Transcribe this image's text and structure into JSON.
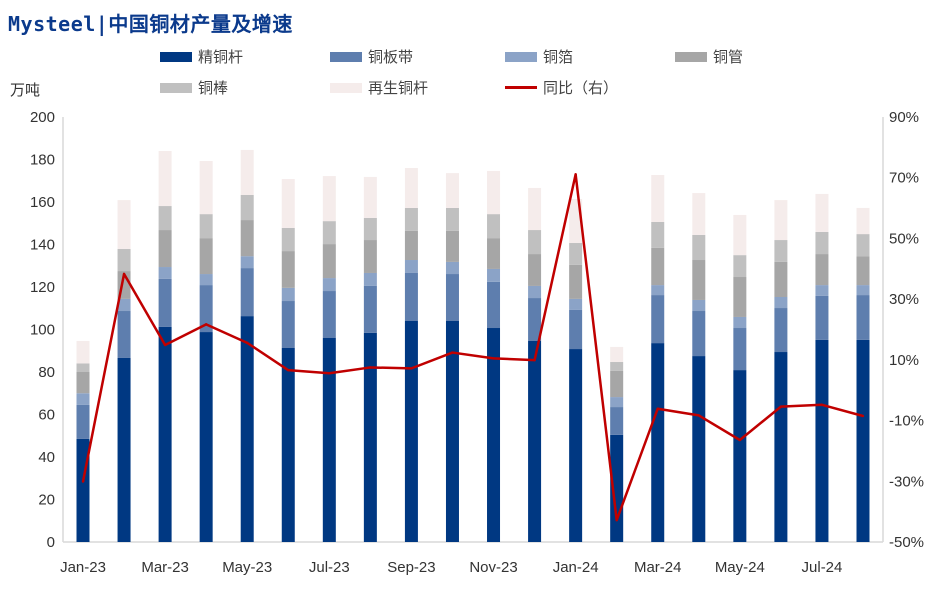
{
  "title": "Mysteel|中国铜材产量及增速",
  "chart_data": {
    "type": "bar",
    "stacked": true,
    "title": "Mysteel|中国铜材产量及增速",
    "ylabel": "万吨",
    "ylim": [
      0,
      200
    ],
    "y_ticks": [
      0,
      20,
      40,
      60,
      80,
      100,
      120,
      140,
      160,
      180,
      200
    ],
    "y2lim": [
      -50,
      90
    ],
    "y2_ticks": [
      "-50%",
      "-30%",
      "-10%",
      "10%",
      "30%",
      "50%",
      "70%",
      "90%"
    ],
    "grid": false,
    "legend_position": "top",
    "categories": [
      "Jan-23",
      "Feb-23",
      "Mar-23",
      "Apr-23",
      "May-23",
      "Jun-23",
      "Jul-23",
      "Aug-23",
      "Sep-23",
      "Oct-23",
      "Nov-23",
      "Dec-23",
      "Jan-24",
      "Feb-24",
      "Mar-24",
      "Apr-24",
      "May-24",
      "Jun-24",
      "Jul-24",
      "Aug-24"
    ],
    "x_tick_labels": [
      "Jan-23",
      "Mar-23",
      "May-23",
      "Jul-23",
      "Sep-23",
      "Nov-23",
      "Jan-24",
      "Mar-24",
      "May-24",
      "Jul-24"
    ],
    "series": [
      {
        "name": "精铜杆",
        "color": "#003882",
        "values": [
          48.5,
          86.6,
          101.2,
          98.8,
          106.3,
          91.3,
          96.0,
          98.4,
          104.0,
          104.0,
          100.7,
          94.6,
          90.8,
          50.4,
          93.6,
          87.5,
          80.9,
          89.4,
          95.1,
          95.1
        ]
      },
      {
        "name": "铜板带",
        "color": "#5e7eae",
        "values": [
          16.0,
          22.1,
          22.6,
          22.1,
          22.6,
          22.1,
          22.1,
          22.1,
          22.6,
          22.1,
          21.7,
          20.2,
          18.4,
          13.1,
          22.6,
          21.2,
          19.8,
          20.7,
          20.7,
          21.1
        ]
      },
      {
        "name": "铜箔",
        "color": "#8ba3c7",
        "values": [
          5.5,
          5.7,
          5.6,
          5.2,
          5.6,
          6.2,
          6.1,
          6.1,
          6.1,
          5.7,
          6.1,
          5.7,
          5.2,
          4.7,
          4.7,
          5.2,
          5.2,
          5.2,
          5.1,
          4.7
        ]
      },
      {
        "name": "铜管",
        "color": "#a6a6a6",
        "values": [
          10.0,
          13.1,
          17.4,
          16.9,
          17.0,
          17.3,
          16.0,
          15.5,
          13.7,
          14.6,
          14.5,
          15.0,
          16.0,
          12.3,
          17.5,
          18.8,
          18.8,
          16.5,
          14.6,
          13.6
        ]
      },
      {
        "name": "铜棒",
        "color": "#c0c0c0",
        "values": [
          4.0,
          10.4,
          11.3,
          11.3,
          11.8,
          10.9,
          10.8,
          10.4,
          10.8,
          10.8,
          11.3,
          11.3,
          10.3,
          4.2,
          12.2,
          11.8,
          10.3,
          10.3,
          10.4,
          10.4
        ]
      },
      {
        "name": "再生铜杆",
        "color": "#f5eceb",
        "values": [
          10.6,
          23.0,
          25.9,
          25.0,
          21.2,
          23.0,
          21.2,
          19.3,
          18.8,
          16.4,
          20.3,
          19.8,
          20.7,
          7.1,
          22.1,
          19.7,
          18.9,
          18.8,
          17.9,
          12.3
        ]
      }
    ],
    "line_series": {
      "name": "同比（右）",
      "color": "#c00000",
      "axis": "right",
      "unit": "%",
      "values": [
        -30.1,
        38.3,
        14.9,
        21.7,
        15.6,
        6.6,
        5.6,
        7.5,
        7.2,
        12.4,
        10.5,
        9.9,
        71.1,
        -42.8,
        -6.1,
        -8.3,
        -16.4,
        -5.4,
        -4.8,
        -8.5
      ]
    }
  }
}
